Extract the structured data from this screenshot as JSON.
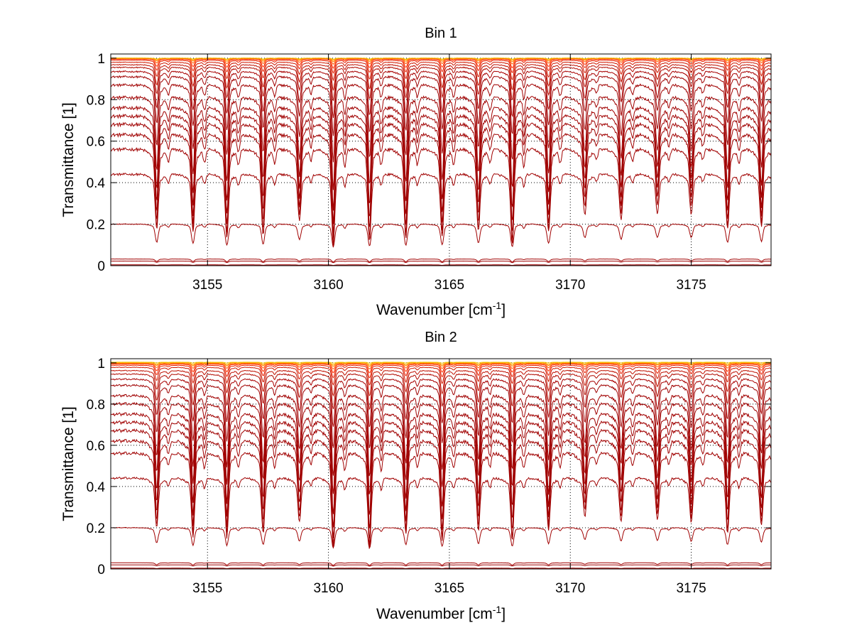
{
  "chart_data": [
    {
      "type": "line",
      "title": "Bin 1",
      "xlabel": "Wavenumber [cm",
      "xlabel_sup": "-1",
      "xlabel_suffix": "]",
      "ylabel": "Transmittance [1]",
      "xlim": [
        3151.0,
        3178.3
      ],
      "ylim": [
        0,
        1.02
      ],
      "xticks": [
        3155,
        3160,
        3165,
        3170,
        3175
      ],
      "yticks": [
        0,
        0.2,
        0.4,
        0.6,
        0.8,
        1
      ],
      "ytick_labels": [
        "0",
        "0.2",
        "0.4",
        "0.6",
        "0.8",
        "1"
      ],
      "grid": true,
      "line_positions": [
        3152.9,
        3154.4,
        3155.8,
        3157.3,
        3158.8,
        3160.2,
        3161.7,
        3163.2,
        3164.7,
        3166.2,
        3167.6,
        3169.1,
        3170.6,
        3172.1,
        3173.6,
        3175.0,
        3176.5,
        3177.9
      ],
      "line_strengths": [
        0.85,
        0.9,
        1.0,
        0.95,
        0.7,
        1.1,
        1.05,
        1.0,
        1.0,
        0.9,
        1.1,
        0.9,
        0.6,
        0.7,
        0.6,
        0.6,
        0.85,
        0.8
      ],
      "series": [
        {
          "continuum": 1.0,
          "depth": 0.004,
          "color": "#f2c200"
        },
        {
          "continuum": 1.0,
          "depth": 0.008,
          "color": "#ffa500"
        },
        {
          "continuum": 1.0,
          "depth": 0.014,
          "color": "#ff8000"
        },
        {
          "continuum": 0.998,
          "depth": 0.022,
          "color": "#ff5a00"
        },
        {
          "continuum": 0.995,
          "depth": 0.035,
          "color": "#ff3000"
        },
        {
          "continuum": 0.99,
          "depth": 0.05,
          "color": "#e82000"
        },
        {
          "continuum": 0.98,
          "depth": 0.07,
          "color": "#d01800"
        },
        {
          "continuum": 0.968,
          "depth": 0.1,
          "color": "#c01000"
        },
        {
          "continuum": 0.955,
          "depth": 0.13,
          "color": "#b00a00"
        },
        {
          "continuum": 0.935,
          "depth": 0.18,
          "color": "#a80000"
        },
        {
          "continuum": 0.91,
          "depth": 0.23,
          "color": "#a00000"
        },
        {
          "continuum": 0.87,
          "depth": 0.3,
          "color": "#a00000"
        },
        {
          "continuum": 0.81,
          "depth": 0.36,
          "color": "#a00000"
        },
        {
          "continuum": 0.76,
          "depth": 0.4,
          "color": "#a00000"
        },
        {
          "continuum": 0.72,
          "depth": 0.42,
          "color": "#a00000"
        },
        {
          "continuum": 0.68,
          "depth": 0.43,
          "color": "#a00000"
        },
        {
          "continuum": 0.63,
          "depth": 0.42,
          "color": "#a00000"
        },
        {
          "continuum": 0.56,
          "depth": 0.38,
          "color": "#a00000"
        },
        {
          "continuum": 0.44,
          "depth": 0.27,
          "color": "#a00000"
        },
        {
          "continuum": 0.2,
          "depth": 0.09,
          "color": "#a00000"
        },
        {
          "continuum": 0.032,
          "depth": 0.012,
          "color": "#a00000"
        },
        {
          "continuum": 0.022,
          "depth": 0.006,
          "color": "#a00000"
        },
        {
          "continuum": 0.004,
          "depth": 0.002,
          "color": "#a00000"
        },
        {
          "continuum": 0.001,
          "depth": 0.0,
          "color": "#a00000"
        }
      ]
    },
    {
      "type": "line",
      "title": "Bin 2",
      "xlabel": "Wavenumber [cm",
      "xlabel_sup": "-1",
      "xlabel_suffix": "]",
      "ylabel": "Transmittance [1]",
      "xlim": [
        3151.0,
        3178.3
      ],
      "ylim": [
        0,
        1.02
      ],
      "xticks": [
        3155,
        3160,
        3165,
        3170,
        3175
      ],
      "yticks": [
        0,
        0.2,
        0.4,
        0.6,
        0.8,
        1
      ],
      "ytick_labels": [
        "0",
        "0.2",
        "0.4",
        "0.6",
        "0.8",
        "1"
      ],
      "grid": true,
      "line_positions": [
        3152.9,
        3154.4,
        3155.8,
        3157.3,
        3158.8,
        3160.2,
        3161.7,
        3163.2,
        3164.7,
        3166.2,
        3167.6,
        3169.1,
        3170.6,
        3172.1,
        3173.6,
        3175.0,
        3176.5,
        3177.9
      ],
      "line_strengths": [
        0.8,
        0.95,
        0.95,
        0.9,
        0.7,
        1.1,
        1.1,
        0.9,
        1.0,
        0.85,
        1.0,
        0.85,
        0.6,
        0.7,
        0.65,
        0.7,
        0.9,
        0.75
      ],
      "series": [
        {
          "continuum": 1.003,
          "depth": 0.004,
          "color": "#f2c200"
        },
        {
          "continuum": 1.0,
          "depth": 0.008,
          "color": "#ffa500"
        },
        {
          "continuum": 1.0,
          "depth": 0.014,
          "color": "#ff8000"
        },
        {
          "continuum": 0.997,
          "depth": 0.022,
          "color": "#ff5a00"
        },
        {
          "continuum": 0.994,
          "depth": 0.035,
          "color": "#ff3000"
        },
        {
          "continuum": 0.988,
          "depth": 0.05,
          "color": "#e82000"
        },
        {
          "continuum": 0.978,
          "depth": 0.07,
          "color": "#d01800"
        },
        {
          "continuum": 0.962,
          "depth": 0.1,
          "color": "#c01000"
        },
        {
          "continuum": 0.945,
          "depth": 0.14,
          "color": "#b00a00"
        },
        {
          "continuum": 0.92,
          "depth": 0.19,
          "color": "#a80000"
        },
        {
          "continuum": 0.89,
          "depth": 0.25,
          "color": "#a00000"
        },
        {
          "continuum": 0.84,
          "depth": 0.32,
          "color": "#a00000"
        },
        {
          "continuum": 0.8,
          "depth": 0.36,
          "color": "#a00000"
        },
        {
          "continuum": 0.75,
          "depth": 0.4,
          "color": "#a00000"
        },
        {
          "continuum": 0.71,
          "depth": 0.42,
          "color": "#a00000"
        },
        {
          "continuum": 0.67,
          "depth": 0.43,
          "color": "#a00000"
        },
        {
          "continuum": 0.62,
          "depth": 0.42,
          "color": "#a00000"
        },
        {
          "continuum": 0.56,
          "depth": 0.38,
          "color": "#a00000"
        },
        {
          "continuum": 0.44,
          "depth": 0.26,
          "color": "#a00000"
        },
        {
          "continuum": 0.2,
          "depth": 0.08,
          "color": "#a00000"
        },
        {
          "continuum": 0.03,
          "depth": 0.01,
          "color": "#a00000"
        },
        {
          "continuum": 0.02,
          "depth": 0.005,
          "color": "#a00000"
        },
        {
          "continuum": 0.004,
          "depth": 0.002,
          "color": "#a00000"
        },
        {
          "continuum": 0.001,
          "depth": 0.0,
          "color": "#a00000"
        }
      ]
    }
  ]
}
